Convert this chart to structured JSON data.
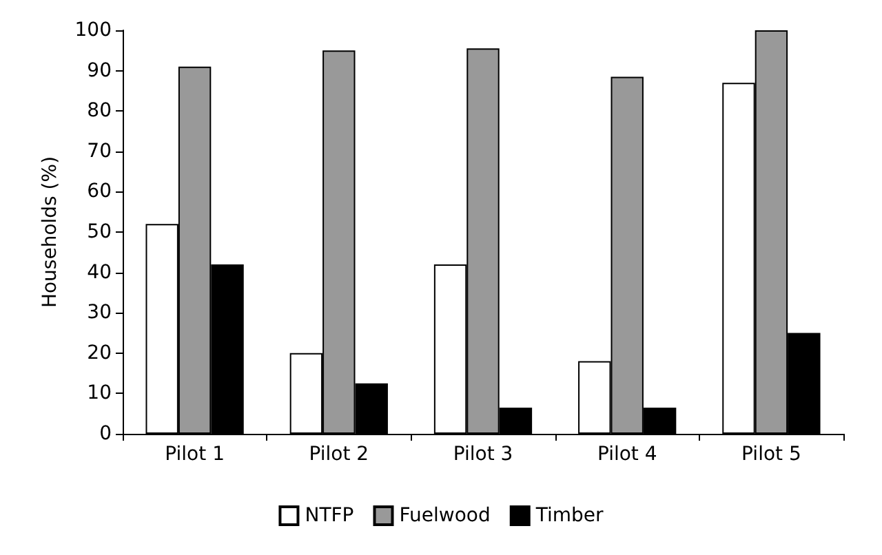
{
  "chart_data": {
    "type": "bar",
    "ylabel": "Households (%)",
    "categories": [
      "Pilot 1",
      "Pilot 2",
      "Pilot 3",
      "Pilot 4",
      "Pilot 5"
    ],
    "series": [
      {
        "name": "NTFP",
        "color": "#ffffff",
        "values": [
          52,
          20,
          42,
          18,
          87
        ]
      },
      {
        "name": "Fuelwood",
        "color": "#999999",
        "values": [
          91,
          95,
          95.5,
          88.5,
          100
        ]
      },
      {
        "name": "Timber",
        "color": "#000000",
        "values": [
          42,
          12.5,
          6.5,
          6.5,
          25
        ]
      }
    ],
    "ylim": [
      0,
      100
    ],
    "yticks": [
      0,
      10,
      20,
      30,
      40,
      50,
      60,
      70,
      80,
      90,
      100
    ],
    "grid": false,
    "legend": "bottom"
  }
}
